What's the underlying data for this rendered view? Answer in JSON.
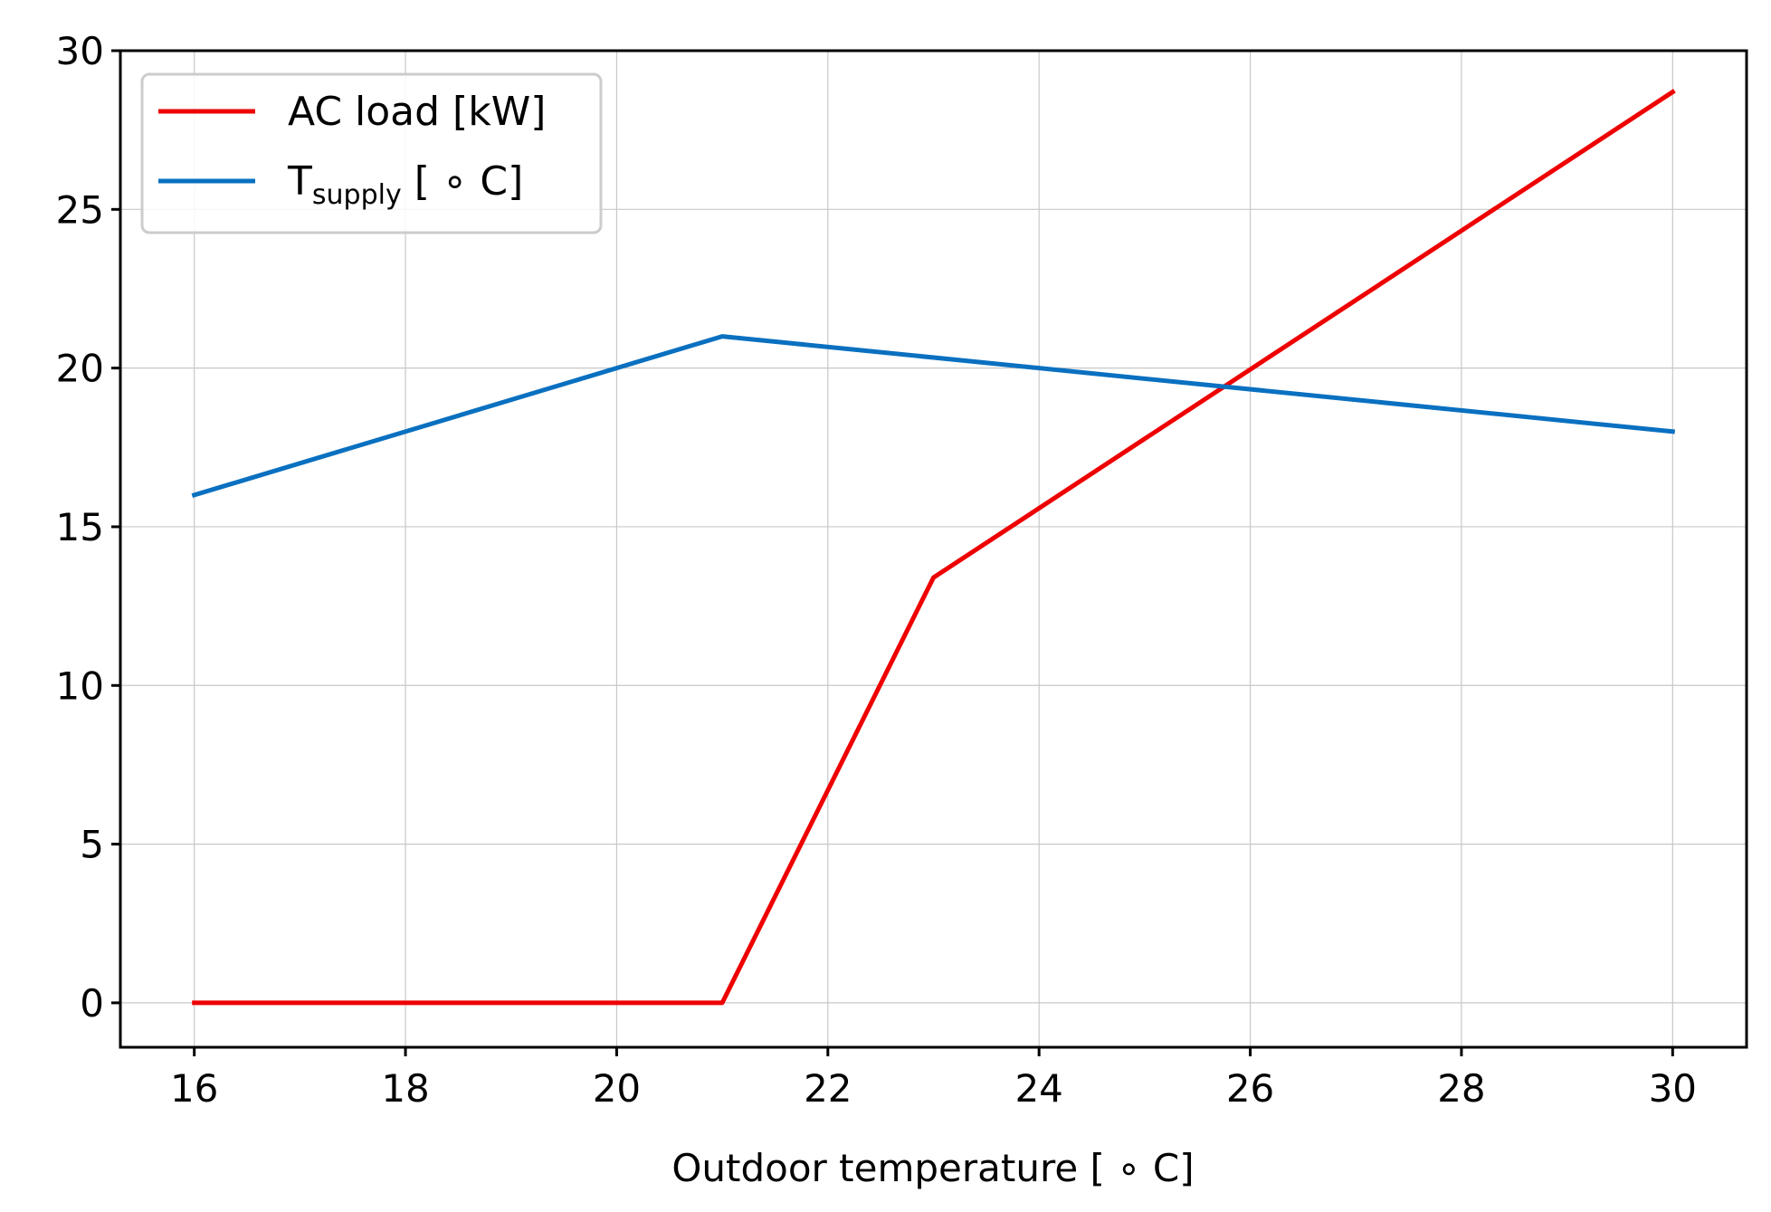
{
  "chart_data": {
    "type": "line",
    "title": "",
    "xlabel": "Outdoor temperature [$^\\circ$C]",
    "xlabel_text": "Outdoor temperature [ ∘ C]",
    "ylabel": "",
    "xlim": [
      15.3,
      30.7
    ],
    "ylim": [
      -1.4,
      30
    ],
    "xticks": [
      16,
      18,
      20,
      22,
      24,
      26,
      28,
      30
    ],
    "yticks": [
      0,
      5,
      10,
      15,
      20,
      25,
      30
    ],
    "grid": true,
    "legend_position": "top-left",
    "series": [
      {
        "name": "AC load [kW]",
        "color": "#ee0000",
        "x": [
          16,
          21,
          23,
          30
        ],
        "y": [
          0,
          0,
          13.4,
          28.7
        ]
      },
      {
        "name": "T_supply [°C]",
        "color": "#0a70c0",
        "x": [
          16,
          21,
          30
        ],
        "y": [
          16,
          21,
          18
        ]
      }
    ],
    "legend": {
      "items": [
        {
          "label": "AC load [kW]"
        },
        {
          "label_main": "T",
          "label_sub": "supply",
          "label_rest": " [ ∘ C]"
        }
      ]
    }
  }
}
